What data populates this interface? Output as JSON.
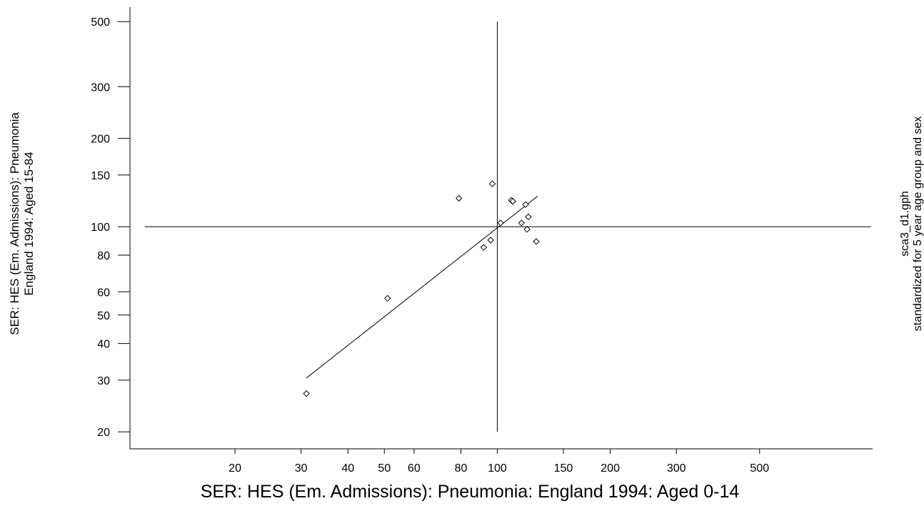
{
  "chart_data": {
    "type": "scatter",
    "xlabel": "SER: HES (Em. Admissions): Pneumonia: England 1994: Aged 0-14",
    "ylabel_lines": [
      "SER: HES (Em. Admissions): Pneumonia",
      "England 1994: Aged 15-84"
    ],
    "right_note_lines": [
      "sca3_d1.gph",
      "standardized for 5 year age group and sex"
    ],
    "x_scale": "log",
    "y_scale": "log",
    "x_ticks": [
      20,
      30,
      40,
      50,
      60,
      80,
      100,
      150,
      200,
      300,
      500
    ],
    "y_ticks": [
      20,
      30,
      40,
      50,
      60,
      80,
      100,
      150,
      200,
      300,
      500
    ],
    "xlim": [
      10.5,
      1000
    ],
    "ylim": [
      17.5,
      560
    ],
    "reference_lines": {
      "x": 100,
      "y": 100,
      "x_extent": [
        11.5,
        990
      ],
      "y_extent": [
        20,
        500
      ]
    },
    "points": [
      {
        "x": 31,
        "y": 27
      },
      {
        "x": 51,
        "y": 57
      },
      {
        "x": 79,
        "y": 125
      },
      {
        "x": 92,
        "y": 85
      },
      {
        "x": 96,
        "y": 90
      },
      {
        "x": 97,
        "y": 140
      },
      {
        "x": 102,
        "y": 103
      },
      {
        "x": 109,
        "y": 123
      },
      {
        "x": 110,
        "y": 122
      },
      {
        "x": 116,
        "y": 103
      },
      {
        "x": 119,
        "y": 119
      },
      {
        "x": 120,
        "y": 98
      },
      {
        "x": 121,
        "y": 108
      },
      {
        "x": 127,
        "y": 89
      }
    ],
    "fit_line": [
      {
        "x": 31,
        "y": 30.5
      },
      {
        "x": 128,
        "y": 127
      }
    ],
    "grid": false,
    "legend": "none"
  }
}
